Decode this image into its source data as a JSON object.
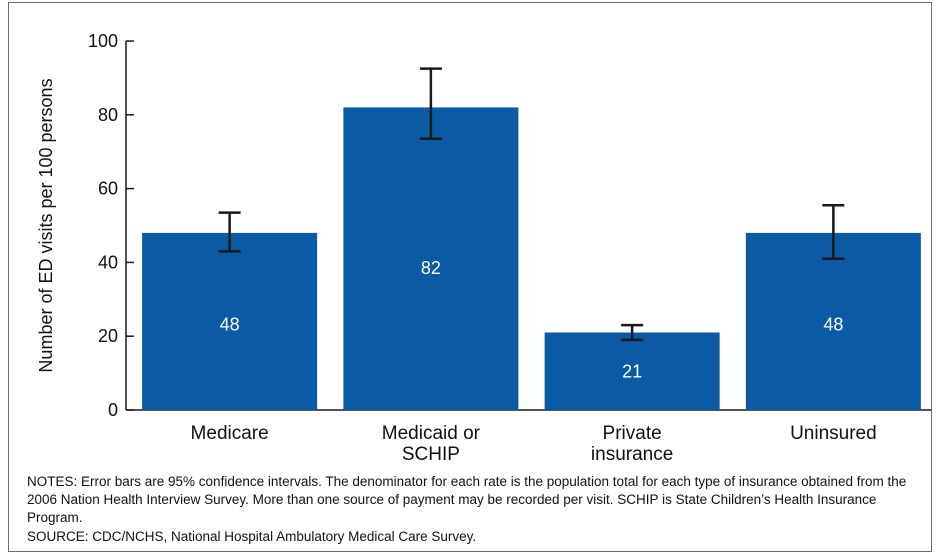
{
  "colors": {
    "bar": "#0a5aa6",
    "axis": "#1a1a1a",
    "bar_label": "#ffffff",
    "error_bar": "#1a1a1a"
  },
  "chart_data": {
    "type": "bar",
    "categories": [
      "Medicare",
      "Medicaid or SCHIP",
      "Private insurance",
      "Uninsured"
    ],
    "category_lines": [
      [
        "Medicare"
      ],
      [
        "Medicaid or",
        "SCHIP"
      ],
      [
        "Private",
        "insurance"
      ],
      [
        "Uninsured"
      ]
    ],
    "values": [
      48,
      82,
      21,
      48
    ],
    "data_labels": [
      "48",
      "82",
      "21",
      "48"
    ],
    "error_bars": [
      {
        "low": 43,
        "high": 53.5
      },
      {
        "low": 73.5,
        "high": 92.5
      },
      {
        "low": 19,
        "high": 23
      },
      {
        "low": 41,
        "high": 55.5
      }
    ],
    "ylabel": "Number of ED visits per 100 persons",
    "xlabel": "",
    "title": "",
    "ylim": [
      0,
      100
    ],
    "yticks": [
      0,
      20,
      40,
      60,
      80,
      100
    ],
    "grid": false,
    "legend": "none"
  },
  "notes": "NOTES: Error bars are 95% confidence intervals. The denominator for each rate is the population total for each type of insurance obtained from the 2006 Nation Health Interview Survey. More than one source of payment may be recorded per visit. SCHIP is State Children’s Health Insurance Program.",
  "source": "SOURCE: CDC/NCHS, National Hospital Ambulatory Medical Care Survey."
}
